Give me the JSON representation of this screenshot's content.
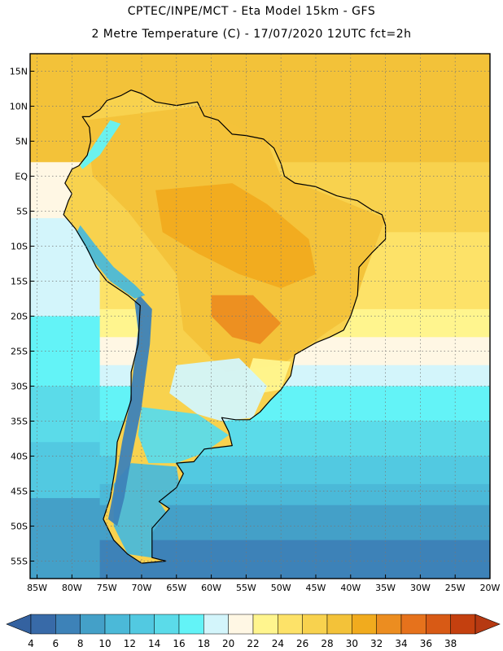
{
  "header": {
    "line1": "CPTEC/INPE/MCT -  Eta Model 15km - GFS",
    "line2": "2 Metre Temperature (C) - 17/07/2020 12UTC fct=2h"
  },
  "map_data": {
    "region": "South America",
    "variable": "2 Metre Temperature",
    "units": "C",
    "lat_range": [
      -57.5,
      17.5
    ],
    "lon_range": [
      -86,
      -20
    ],
    "lat_ticks": [
      {
        "value": 15,
        "label": "15N"
      },
      {
        "value": 10,
        "label": "10N"
      },
      {
        "value": 5,
        "label": "5N"
      },
      {
        "value": 0,
        "label": "EQ"
      },
      {
        "value": -5,
        "label": "5S"
      },
      {
        "value": -10,
        "label": "10S"
      },
      {
        "value": -15,
        "label": "15S"
      },
      {
        "value": -20,
        "label": "20S"
      },
      {
        "value": -25,
        "label": "25S"
      },
      {
        "value": -30,
        "label": "30S"
      },
      {
        "value": -35,
        "label": "35S"
      },
      {
        "value": -40,
        "label": "40S"
      },
      {
        "value": -45,
        "label": "45S"
      },
      {
        "value": -50,
        "label": "50S"
      },
      {
        "value": -55,
        "label": "55S"
      }
    ],
    "lon_ticks": [
      {
        "value": -85,
        "label": "85W"
      },
      {
        "value": -80,
        "label": "80W"
      },
      {
        "value": -75,
        "label": "75W"
      },
      {
        "value": -70,
        "label": "70W"
      },
      {
        "value": -65,
        "label": "65W"
      },
      {
        "value": -60,
        "label": "60W"
      },
      {
        "value": -55,
        "label": "55W"
      },
      {
        "value": -50,
        "label": "50W"
      },
      {
        "value": -45,
        "label": "45W"
      },
      {
        "value": -40,
        "label": "40W"
      },
      {
        "value": -35,
        "label": "35W"
      },
      {
        "value": -30,
        "label": "30W"
      },
      {
        "value": -25,
        "label": "25W"
      },
      {
        "value": -20,
        "label": "20W"
      }
    ],
    "ocean_bands": [
      {
        "lat_from": 17.5,
        "lat_to": 2,
        "temp": 28
      },
      {
        "lat_from": 2,
        "lat_to": -8,
        "temp": 26
      },
      {
        "lat_from": -8,
        "lat_to": -19,
        "temp": 24
      },
      {
        "lat_from": -19,
        "lat_to": -23,
        "temp": 22
      },
      {
        "lat_from": -23,
        "lat_to": -27,
        "temp": 20
      },
      {
        "lat_from": -27,
        "lat_to": -30,
        "temp": 18
      },
      {
        "lat_from": -30,
        "lat_to": -35,
        "temp": 16
      },
      {
        "lat_from": -35,
        "lat_to": -40,
        "temp": 14
      },
      {
        "lat_from": -40,
        "lat_to": -44,
        "temp": 12
      },
      {
        "lat_from": -44,
        "lat_to": -47,
        "temp": 10
      },
      {
        "lat_from": -47,
        "lat_to": -52,
        "temp": 8
      },
      {
        "lat_from": -52,
        "lat_to": -57.5,
        "temp": 6
      }
    ],
    "pacific_bands": [
      {
        "lat_from": 2,
        "lat_to": -6,
        "temp": 20
      },
      {
        "lat_from": -6,
        "lat_to": -20,
        "temp": 18
      },
      {
        "lat_from": -20,
        "lat_to": -30,
        "temp": 16
      },
      {
        "lat_from": -30,
        "lat_to": -38,
        "temp": 14
      },
      {
        "lat_from": -38,
        "lat_to": -46,
        "temp": 12
      },
      {
        "lat_from": -46,
        "lat_to": -57.5,
        "temp": 8
      }
    ],
    "continent_outline": [
      [
        -77.5,
        8.5
      ],
      [
        -76,
        9.5
      ],
      [
        -75,
        10.8
      ],
      [
        -73,
        11.5
      ],
      [
        -71.5,
        12.3
      ],
      [
        -70,
        11.8
      ],
      [
        -68,
        10.6
      ],
      [
        -65,
        10.1
      ],
      [
        -62,
        10.6
      ],
      [
        -61,
        8.6
      ],
      [
        -59,
        8
      ],
      [
        -57,
        6
      ],
      [
        -55,
        5.8
      ],
      [
        -52.5,
        5.3
      ],
      [
        -51,
        4
      ],
      [
        -50,
        1.8
      ],
      [
        -49.5,
        0
      ],
      [
        -48,
        -1
      ],
      [
        -45,
        -1.5
      ],
      [
        -42,
        -2.8
      ],
      [
        -39,
        -3.5
      ],
      [
        -37,
        -4.8
      ],
      [
        -35.5,
        -5.5
      ],
      [
        -35,
        -7
      ],
      [
        -35,
        -9
      ],
      [
        -37,
        -11
      ],
      [
        -38.8,
        -13
      ],
      [
        -39,
        -17
      ],
      [
        -40,
        -20
      ],
      [
        -41,
        -22
      ],
      [
        -43,
        -23
      ],
      [
        -45,
        -23.8
      ],
      [
        -48,
        -25.5
      ],
      [
        -48.6,
        -28.5
      ],
      [
        -50,
        -30.5
      ],
      [
        -51.5,
        -32
      ],
      [
        -53,
        -33.7
      ],
      [
        -54.5,
        -34.8
      ],
      [
        -56.5,
        -34.8
      ],
      [
        -58.5,
        -34.5
      ],
      [
        -57.5,
        -36.5
      ],
      [
        -57,
        -38.5
      ],
      [
        -61,
        -39
      ],
      [
        -62.5,
        -40.8
      ],
      [
        -65,
        -41
      ],
      [
        -64,
        -42.5
      ],
      [
        -65,
        -44.5
      ],
      [
        -67.5,
        -46.5
      ],
      [
        -66,
        -47.5
      ],
      [
        -68.5,
        -50.3
      ],
      [
        -68.5,
        -52.3
      ],
      [
        -68.5,
        -54.5
      ],
      [
        -66.5,
        -55
      ],
      [
        -70,
        -55.3
      ],
      [
        -72,
        -54
      ],
      [
        -74,
        -52
      ],
      [
        -75.5,
        -49
      ],
      [
        -74.5,
        -46
      ],
      [
        -74,
        -43
      ],
      [
        -73.7,
        -41
      ],
      [
        -73.5,
        -38
      ],
      [
        -72.5,
        -35
      ],
      [
        -71.5,
        -32
      ],
      [
        -71.5,
        -28
      ],
      [
        -70.5,
        -24
      ],
      [
        -70.2,
        -18.5
      ],
      [
        -72,
        -17
      ],
      [
        -75,
        -15
      ],
      [
        -76.5,
        -13
      ],
      [
        -78,
        -10
      ],
      [
        -79.5,
        -7.5
      ],
      [
        -81.2,
        -5.5
      ],
      [
        -80.5,
        -3.5
      ],
      [
        -80,
        -2.5
      ],
      [
        -81,
        -1
      ],
      [
        -80,
        1
      ],
      [
        -79,
        1.5
      ],
      [
        -77.8,
        3
      ],
      [
        -77.3,
        5
      ],
      [
        -77.5,
        7
      ],
      [
        -78.5,
        8.5
      ]
    ],
    "land_regions": [
      {
        "name": "tropical-interior",
        "temp": 28,
        "polygon": [
          [
            -78,
            8
          ],
          [
            -62,
            10
          ],
          [
            -52,
            5
          ],
          [
            -50,
            0
          ],
          [
            -35,
            -6
          ],
          [
            -38,
            -14
          ],
          [
            -40,
            -20
          ],
          [
            -43,
            -22
          ],
          [
            -50,
            -27
          ],
          [
            -58,
            -28
          ],
          [
            -64,
            -22
          ],
          [
            -65,
            -14
          ],
          [
            -72,
            -5
          ],
          [
            -77,
            0
          ]
        ]
      },
      {
        "name": "hot-core-amazon",
        "temp": 30,
        "polygon": [
          [
            -68,
            -2
          ],
          [
            -57,
            -1
          ],
          [
            -52,
            -4
          ],
          [
            -46,
            -9
          ],
          [
            -45,
            -14
          ],
          [
            -50,
            -16
          ],
          [
            -56,
            -14
          ],
          [
            -62,
            -11
          ],
          [
            -67,
            -8
          ]
        ]
      },
      {
        "name": "hot-core-mato-grosso",
        "temp": 32,
        "polygon": [
          [
            -60,
            -17
          ],
          [
            -54,
            -17
          ],
          [
            -50,
            -21
          ],
          [
            -53,
            -24
          ],
          [
            -57,
            -23
          ],
          [
            -60,
            -20
          ]
        ]
      },
      {
        "name": "southern-brazil",
        "temp": 22,
        "polygon": [
          [
            -54,
            -26
          ],
          [
            -48.6,
            -26.5
          ],
          [
            -50,
            -30.5
          ],
          [
            -53,
            -31
          ],
          [
            -55,
            -29
          ]
        ]
      },
      {
        "name": "pampas",
        "temp": 18,
        "polygon": [
          [
            -65,
            -27
          ],
          [
            -56,
            -26
          ],
          [
            -52,
            -30
          ],
          [
            -54,
            -34.5
          ],
          [
            -58.5,
            -35
          ],
          [
            -62,
            -34
          ],
          [
            -66,
            -31
          ]
        ]
      },
      {
        "name": "patagonia-north",
        "temp": 14,
        "polygon": [
          [
            -70,
            -33
          ],
          [
            -62,
            -34
          ],
          [
            -57.5,
            -37
          ],
          [
            -61,
            -39.5
          ],
          [
            -65,
            -41
          ],
          [
            -69,
            -41
          ],
          [
            -70.5,
            -37
          ]
        ]
      },
      {
        "name": "patagonia-south",
        "temp": 10,
        "polygon": [
          [
            -71.5,
            -41
          ],
          [
            -65,
            -41.5
          ],
          [
            -64.5,
            -44.5
          ],
          [
            -67.5,
            -46.5
          ],
          [
            -66.5,
            -48
          ],
          [
            -68.5,
            -51
          ],
          [
            -68.5,
            -54.5
          ],
          [
            -72,
            -54
          ],
          [
            -74,
            -50
          ],
          [
            -74,
            -44
          ]
        ]
      },
      {
        "name": "andes-cordillera",
        "temp": 6,
        "polygon": [
          [
            -70.3,
            -17
          ],
          [
            -68.5,
            -19
          ],
          [
            -68.8,
            -24
          ],
          [
            -69.5,
            -29
          ],
          [
            -70,
            -33
          ],
          [
            -71,
            -38
          ],
          [
            -71.8,
            -42
          ],
          [
            -72.5,
            -46
          ],
          [
            -73.5,
            -50
          ],
          [
            -74.8,
            -49
          ],
          [
            -73.8,
            -44
          ],
          [
            -72.8,
            -38
          ],
          [
            -71.8,
            -33
          ],
          [
            -71.2,
            -28
          ],
          [
            -70.5,
            -22
          ],
          [
            -71,
            -18
          ]
        ]
      },
      {
        "name": "northern-andes",
        "temp": 16,
        "polygon": [
          [
            -78.5,
            1
          ],
          [
            -76,
            3
          ],
          [
            -74,
            6
          ],
          [
            -73,
            7.5
          ],
          [
            -74.5,
            8
          ],
          [
            -76.5,
            5
          ],
          [
            -78.8,
            1.5
          ]
        ]
      },
      {
        "name": "peru-sierra",
        "temp": 10,
        "polygon": [
          [
            -78.8,
            -7
          ],
          [
            -76.5,
            -10
          ],
          [
            -74,
            -13
          ],
          [
            -71,
            -15.5
          ],
          [
            -69.5,
            -17
          ],
          [
            -71,
            -17.5
          ],
          [
            -74.5,
            -15
          ],
          [
            -77,
            -12
          ],
          [
            -79.3,
            -8
          ]
        ]
      }
    ],
    "colorbar": {
      "labels": [
        "4",
        "6",
        "8",
        "10",
        "12",
        "14",
        "16",
        "18",
        "20",
        "22",
        "24",
        "26",
        "28",
        "30",
        "32",
        "34",
        "36",
        "38"
      ],
      "colors": [
        "#386aa8",
        "#3d82b8",
        "#44a0c8",
        "#4bb9d8",
        "#52c9e1",
        "#5bdbe9",
        "#63f3f7",
        "#d3f5fb",
        "#fff7e4",
        "#fff58e",
        "#fde268",
        "#f8d24e",
        "#f3c239",
        "#f1ab1e",
        "#ec8d20",
        "#e6721c",
        "#d85a15",
        "#c4400f"
      ],
      "under_color": "#3462a0",
      "over_color": "#b63912"
    },
    "temp_colors": {
      "6": "#3d82b8",
      "8": "#44a0c8",
      "10": "#4bb9d8",
      "12": "#52c9e1",
      "14": "#5bdbe9",
      "16": "#63f3f7",
      "18": "#d3f5fb",
      "20": "#fff7e4",
      "22": "#fff58e",
      "24": "#fde268",
      "26": "#f8d24e",
      "28": "#f3c239",
      "30": "#f1ab1e",
      "32": "#ec8d20"
    }
  }
}
